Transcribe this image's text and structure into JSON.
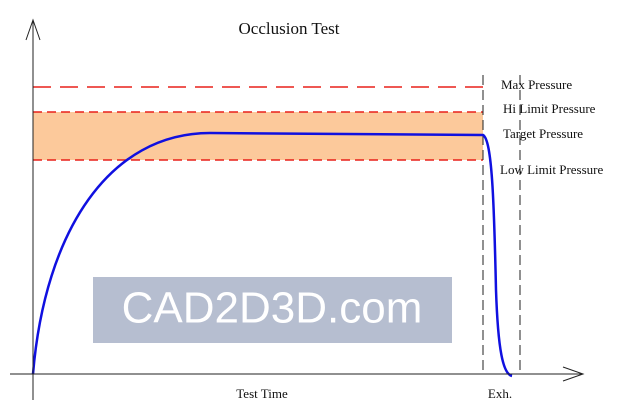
{
  "title": "Occlusion Test",
  "levels": [
    "Max Pressure",
    "Hi Limit Pressure",
    "Target Pressure",
    "Low Limit Pressure"
  ],
  "x_axis": {
    "label": "Test Time",
    "end_label": "Exh."
  },
  "watermark": "CAD2D3D.com"
}
